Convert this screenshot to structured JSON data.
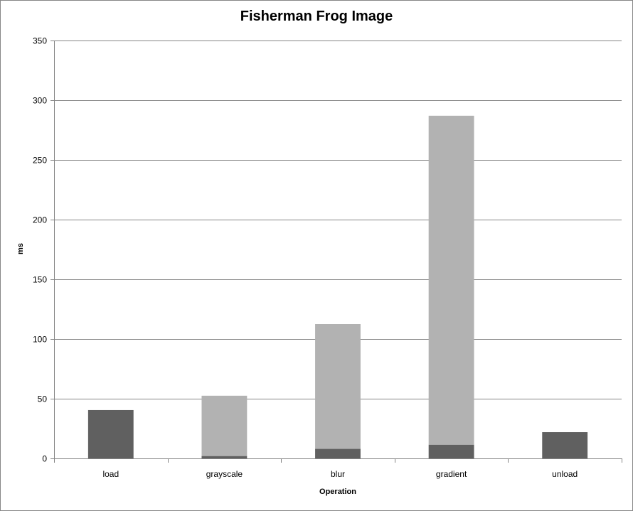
{
  "chart_data": {
    "type": "bar",
    "stacked": true,
    "title": "Fisherman Frog Image",
    "xlabel": "Operation",
    "ylabel": "ms",
    "ylim": [
      0,
      350
    ],
    "yticks": [
      0,
      50,
      100,
      150,
      200,
      250,
      300,
      350
    ],
    "grid": true,
    "legend": "none",
    "categories": [
      "load",
      "grayscale",
      "blur",
      "gradient",
      "unload"
    ],
    "series": [
      {
        "values": [
          40.5,
          2,
          8,
          11.5,
          22
        ],
        "color": "#606060"
      },
      {
        "values": [
          0,
          50.5,
          104.5,
          275.5,
          0
        ],
        "color": "#b2b2b2"
      }
    ]
  }
}
